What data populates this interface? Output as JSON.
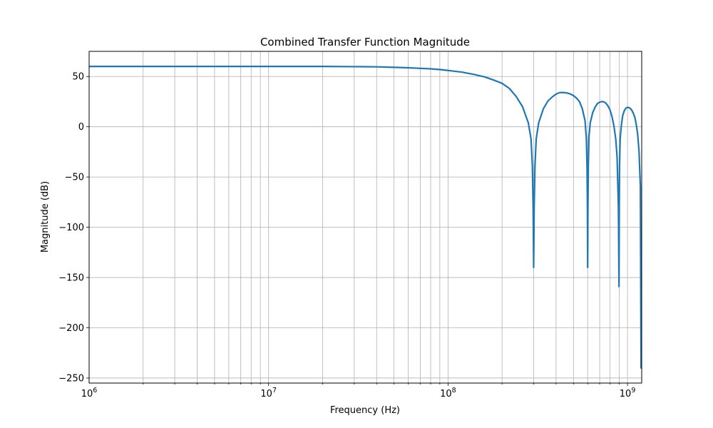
{
  "chart_data": {
    "type": "line",
    "title": "Combined Transfer Function Magnitude",
    "xlabel": "Frequency (Hz)",
    "ylabel": "Magnitude (dB)",
    "xscale": "log",
    "xlim": [
      1000000,
      1200000000
    ],
    "ylim": [
      -255,
      75
    ],
    "grid": true,
    "x_ticks": [
      {
        "value": 1000000,
        "base": "10",
        "exp": "6"
      },
      {
        "value": 10000000,
        "base": "10",
        "exp": "7"
      },
      {
        "value": 100000000,
        "base": "10",
        "exp": "8"
      },
      {
        "value": 1000000000,
        "base": "10",
        "exp": "9"
      }
    ],
    "y_ticks": [
      {
        "value": 50,
        "label": "50"
      },
      {
        "value": 0,
        "label": "0"
      },
      {
        "value": -50,
        "label": "−50"
      },
      {
        "value": -100,
        "label": "−100"
      },
      {
        "value": -150,
        "label": "−150"
      },
      {
        "value": -200,
        "label": "−200"
      },
      {
        "value": -250,
        "label": "−250"
      }
    ],
    "series": [
      {
        "color": "#1f77b4",
        "x": [
          1000000,
          10000000,
          20000000,
          30000000,
          40000000,
          50000000,
          60000000,
          70000000,
          80000000,
          90000000,
          100000000,
          120000000,
          140000000,
          160000000,
          180000000,
          200000000,
          220000000,
          240000000,
          260000000,
          280000000,
          290000000,
          295000000,
          298000000,
          300000000,
          302000000,
          305000000,
          310000000,
          320000000,
          340000000,
          360000000,
          380000000,
          400000000,
          420000000,
          440000000,
          460000000,
          480000000,
          500000000,
          520000000,
          540000000,
          560000000,
          580000000,
          590000000,
          595000000,
          598000000,
          600000000,
          602000000,
          605000000,
          610000000,
          620000000,
          640000000,
          660000000,
          680000000,
          700000000,
          720000000,
          740000000,
          760000000,
          780000000,
          800000000,
          820000000,
          840000000,
          860000000,
          875000000,
          890000000,
          897000000,
          900000000,
          903000000,
          910000000,
          925000000,
          940000000,
          960000000,
          980000000,
          1000000000,
          1020000000,
          1040000000,
          1060000000,
          1080000000,
          1100000000,
          1120000000,
          1140000000,
          1160000000,
          1180000000,
          1190000000,
          1200000000
        ],
        "y": [
          60,
          60,
          60,
          59.8,
          59.6,
          59.1,
          58.7,
          58.1,
          57.6,
          56.9,
          56,
          54.3,
          52,
          49.6,
          46.4,
          43.2,
          38,
          30,
          20,
          4,
          -12,
          -38,
          -80,
          -140,
          -80,
          -40,
          -12,
          4,
          18,
          25.5,
          29.5,
          32.5,
          34,
          34,
          33.6,
          32.6,
          31,
          28.5,
          25,
          18,
          6,
          -12,
          -40,
          -80,
          -140,
          -80,
          -40,
          -10,
          4,
          14,
          19.5,
          23,
          24.5,
          25,
          24.7,
          23.2,
          20.5,
          16.5,
          10,
          1,
          -12,
          -30,
          -80,
          -159,
          -80,
          -40,
          -12,
          2,
          11,
          16,
          18.5,
          19.3,
          19,
          18,
          16,
          13,
          9,
          2,
          -8,
          -25,
          -60,
          -240,
          -240
        ]
      }
    ]
  }
}
